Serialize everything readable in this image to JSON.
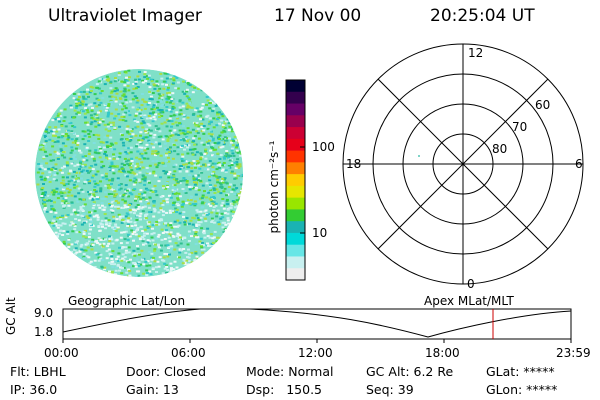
{
  "header": {
    "instrument": "Ultraviolet Imager",
    "date": "17 Nov 00",
    "time": "20:25:04 UT"
  },
  "colorbar": {
    "unit_label": "photon cm⁻²s⁻¹",
    "ticks": [
      "100",
      "10"
    ],
    "colors": [
      "#000033",
      "#33004d",
      "#660066",
      "#99004d",
      "#cc0033",
      "#e6001a",
      "#ff3300",
      "#ff8000",
      "#ffcc00",
      "#e6e600",
      "#99e600",
      "#33cc33",
      "#1ab3b3",
      "#00d9d9",
      "#66e6e6",
      "#c8f0f0",
      "#eeeeee"
    ]
  },
  "polar_plot": {
    "mlt_labels": {
      "top": "12",
      "left": "18",
      "right": "6",
      "bottom": "0"
    },
    "lat_labels": [
      "60",
      "70",
      "80"
    ]
  },
  "orbit_panel": {
    "left_title": "Geographic Lat/Lon",
    "right_title": "Apex MLat/MLT",
    "y_label": "GC Alt",
    "y_ticks": [
      "9.0",
      "1.8"
    ],
    "x_ticks": [
      "00:00",
      "06:00",
      "12:00",
      "18:00",
      "23:59"
    ],
    "current_time_color": "#cc0000"
  },
  "status": {
    "row1": [
      {
        "key": "filter",
        "text": "Flt: LBHL"
      },
      {
        "key": "door",
        "text": "Door: Closed"
      },
      {
        "key": "mode",
        "text": "Mode: Normal"
      },
      {
        "key": "gc_alt",
        "text": "GC Alt: 6.2 Re"
      },
      {
        "key": "glat",
        "text": "GLat: *****"
      }
    ],
    "row2": [
      {
        "key": "ip",
        "text": "IP: 36.0"
      },
      {
        "key": "gain",
        "text": "Gain: 13"
      },
      {
        "key": "dsp",
        "text": "Dsp:   150.5"
      },
      {
        "key": "seq",
        "text": "Seq: 39"
      },
      {
        "key": "glon",
        "text": "GLon: *****"
      }
    ]
  }
}
